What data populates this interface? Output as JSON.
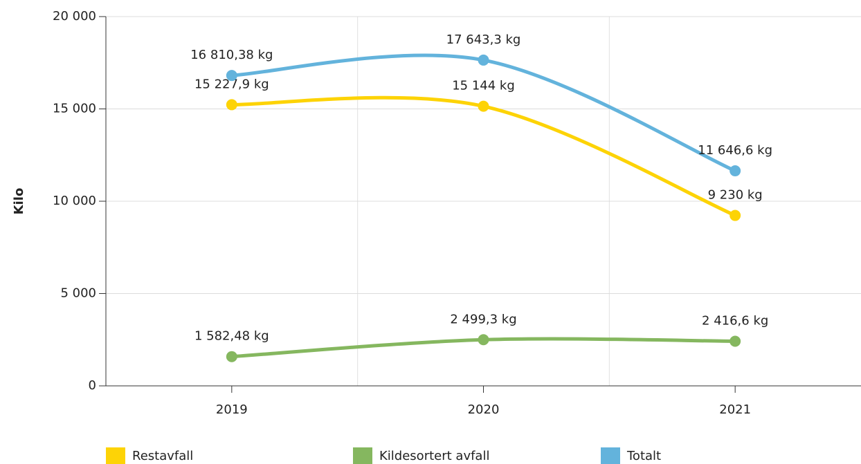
{
  "chart_data": {
    "type": "line",
    "y_label": "Kilo",
    "categories": [
      "2019",
      "2020",
      "2021"
    ],
    "series": [
      {
        "name": "Restavfall",
        "color": "#fdd306",
        "values": [
          15227.9,
          15144,
          9230
        ],
        "value_labels": [
          "15 227,9 kg",
          "15 144 kg",
          "9 230 kg"
        ]
      },
      {
        "name": "Kildesortert avfall",
        "color": "#85b75f",
        "values": [
          1582.48,
          2499.3,
          2416.6
        ],
        "value_labels": [
          "1 582,48 kg",
          "2 499,3 kg",
          "2 416,6 kg"
        ]
      },
      {
        "name": "Totalt",
        "color": "#63b3dc",
        "values": [
          16810.38,
          17643.3,
          11646.6
        ],
        "value_labels": [
          "16 810,38 kg",
          "17 643,3 kg",
          "11 646,6 kg"
        ]
      }
    ],
    "ylim": [
      0,
      20000
    ],
    "yticks": [
      0,
      {
        "value": 5000,
        "label": "5 000"
      },
      {
        "value": 10000,
        "label": "10 000"
      },
      {
        "value": 15000,
        "label": "15 000"
      },
      {
        "value": 20000,
        "label": "20 000"
      }
    ],
    "grid": true,
    "legend": "bottom"
  }
}
